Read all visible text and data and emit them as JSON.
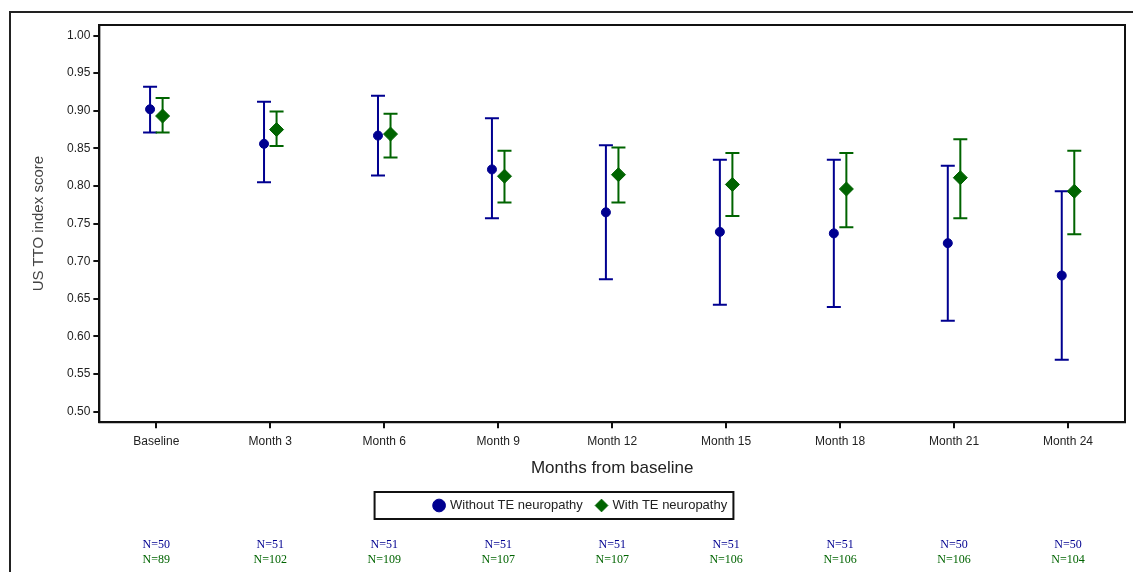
{
  "chart_data": {
    "type": "scatter",
    "xlabel": "Months from baseline",
    "ylabel": "US TTO index score",
    "categories": [
      "Baseline",
      "Month 3",
      "Month 6",
      "Month 9",
      "Month 12",
      "Month 15",
      "Month 18",
      "Month 21",
      "Month 24"
    ],
    "series": [
      {
        "name": "Without TE neuropathy",
        "color": "#000090",
        "marker": "circle",
        "values": [
          0.902,
          0.856,
          0.867,
          0.822,
          0.765,
          0.739,
          0.737,
          0.724,
          0.681
        ],
        "errors": [
          [
            0.871,
            0.932
          ],
          [
            0.805,
            0.912
          ],
          [
            0.814,
            0.92
          ],
          [
            0.757,
            0.89
          ],
          [
            0.676,
            0.854
          ],
          [
            0.642,
            0.835
          ],
          [
            0.639,
            0.835
          ],
          [
            0.621,
            0.827
          ],
          [
            0.569,
            0.793
          ]
        ]
      },
      {
        "name": "With TE neuropathy",
        "color": "#006400",
        "marker": "diamond",
        "values": [
          0.893,
          0.875,
          0.869,
          0.813,
          0.815,
          0.802,
          0.796,
          0.811,
          0.793
        ],
        "errors": [
          [
            0.871,
            0.917
          ],
          [
            0.853,
            0.899
          ],
          [
            0.838,
            0.896
          ],
          [
            0.778,
            0.847
          ],
          [
            0.778,
            0.851
          ],
          [
            0.76,
            0.844
          ],
          [
            0.745,
            0.844
          ],
          [
            0.757,
            0.862
          ],
          [
            0.736,
            0.847
          ]
        ]
      }
    ],
    "ylim": [
      0.486,
      1.014
    ],
    "yticks": [
      {
        "value": 0.5,
        "label": "0.50"
      },
      {
        "value": 0.55,
        "label": "0.55"
      },
      {
        "value": 0.6,
        "label": "0.60"
      },
      {
        "value": 0.65,
        "label": "0.65"
      },
      {
        "value": 0.7,
        "label": "0.70"
      },
      {
        "value": 0.75,
        "label": "0.75"
      },
      {
        "value": 0.8,
        "label": "0.80"
      },
      {
        "value": 0.85,
        "label": "0.85"
      },
      {
        "value": 0.9,
        "label": "0.90"
      },
      {
        "value": 0.95,
        "label": "0.95"
      },
      {
        "value": 1.0,
        "label": "1.00"
      }
    ],
    "legend": "bottom",
    "annotations": [
      "N=50",
      "N=89",
      "N=51",
      "N=102",
      "N=51",
      "N=109",
      "N=51",
      "N=107",
      "N=51",
      "N=107",
      "N=51",
      "N=106",
      "N=51",
      "N=106",
      "N=50",
      "N=106",
      "N=50",
      "N=104"
    ]
  }
}
